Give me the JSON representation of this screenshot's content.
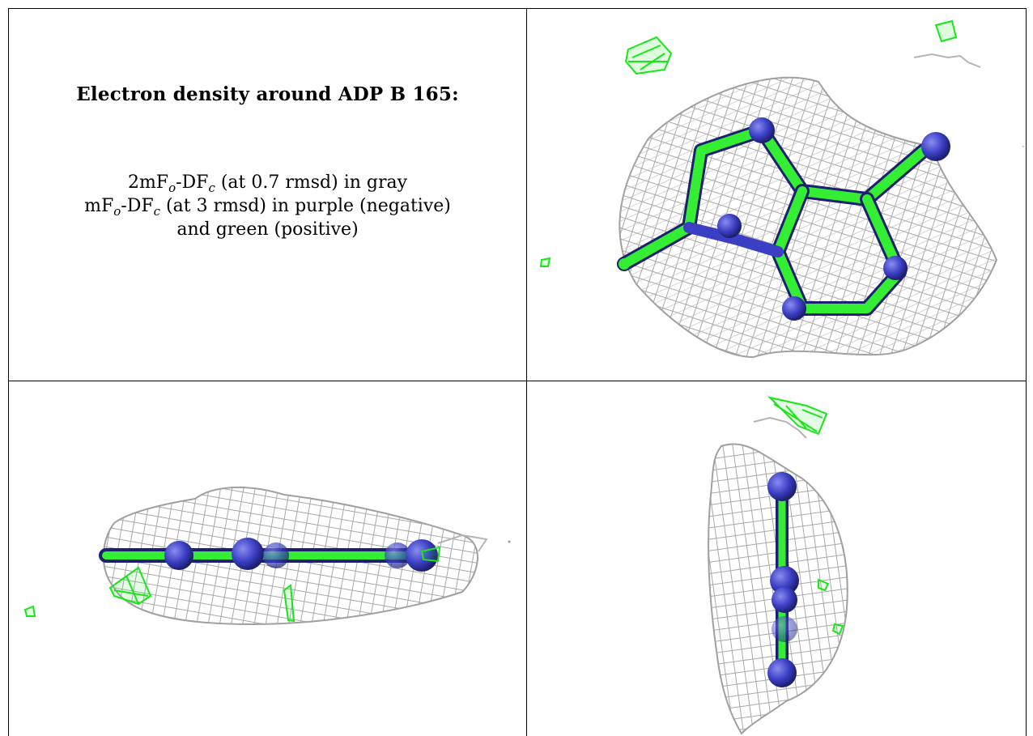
{
  "figure": {
    "title": "Electron density around ADP B 165:",
    "legend": [
      {
        "prefix": "2mF",
        "sub1": "o",
        "mid": "-DF",
        "sub2": "c",
        "suffix": " (at 0.7 rmsd) in gray"
      },
      {
        "prefix": "mF",
        "sub1": "o",
        "mid": "-DF",
        "sub2": "c",
        "suffix": " (at 3 rmsd) in purple (negative)"
      },
      {
        "prefix": "",
        "sub1": "",
        "mid": "",
        "sub2": "",
        "suffix": "and green (positive)"
      }
    ],
    "colors": {
      "mesh_2fofc": "#a8a8a8",
      "positive_density": "#19e619",
      "negative_density": "#7a4fb0",
      "carbon_green": "#33ee33",
      "nitrogen_blue": "#3b3fc4"
    },
    "panels": [
      {
        "name": "top-right-view",
        "view": "face-on"
      },
      {
        "name": "bottom-left-view",
        "view": "edge-on horizontal"
      },
      {
        "name": "bottom-right-view",
        "view": "edge-on vertical"
      }
    ]
  }
}
